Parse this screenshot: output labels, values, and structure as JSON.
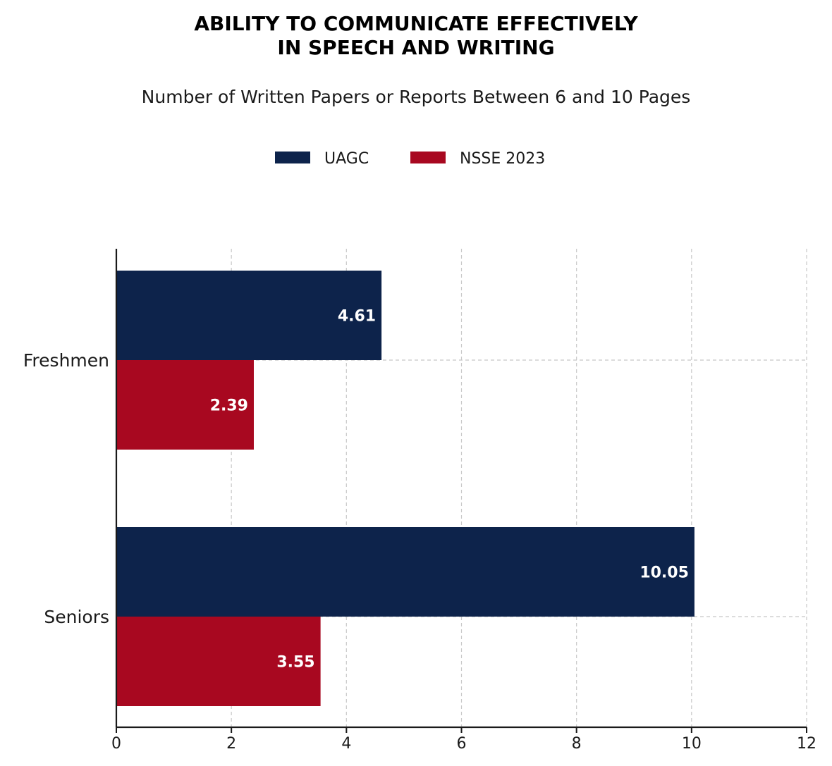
{
  "chart_data": {
    "type": "bar",
    "orientation": "horizontal",
    "title_line1": "ABILITY TO COMMUNICATE EFFECTIVELY",
    "title_line2": "IN SPEECH AND WRITING",
    "subtitle": "Number of Written Papers or Reports Between 6 and 10 Pages",
    "categories": [
      "Freshmen",
      "Seniors"
    ],
    "series": [
      {
        "name": "UAGC",
        "color": "#0d234b",
        "values": [
          4.61,
          10.05
        ],
        "labels": [
          "4.61",
          "10.05"
        ]
      },
      {
        "name": "NSSE 2023",
        "color": "#a80820",
        "values": [
          2.39,
          3.55
        ],
        "labels": [
          "2.39",
          "3.55"
        ]
      }
    ],
    "xlim": [
      0,
      12
    ],
    "xticks": [
      "0",
      "2",
      "4",
      "6",
      "8",
      "10",
      "12"
    ],
    "grid": true,
    "legend_position": "top-center",
    "xlabel": "",
    "ylabel": ""
  }
}
